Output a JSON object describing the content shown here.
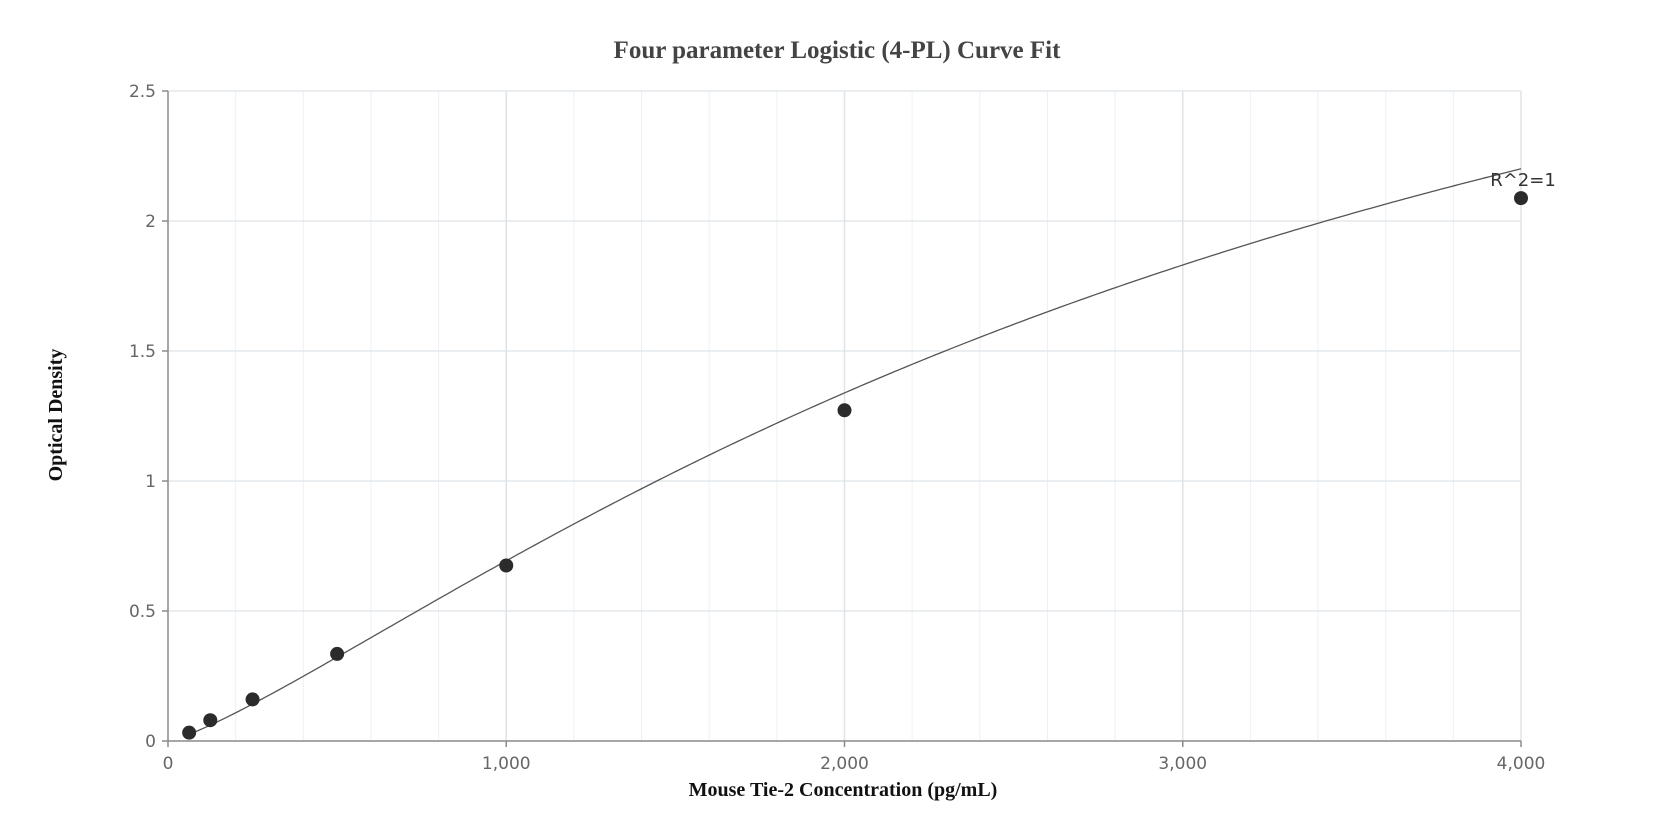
{
  "chart_data": {
    "type": "scatter",
    "title": "Four parameter Logistic (4-PL) Curve Fit",
    "xlabel": "Mouse Tie-2 Concentration (pg/mL)",
    "ylabel": "Optical Density",
    "xlim": [
      0,
      4000
    ],
    "ylim": [
      0,
      2.5
    ],
    "x_ticks": [
      0,
      1000,
      2000,
      3000,
      4000
    ],
    "x_tick_labels": [
      "0",
      "1,000",
      "2,000",
      "3,000",
      "4,000"
    ],
    "x_minor_step": 200,
    "y_ticks": [
      0,
      0.5,
      1,
      1.5,
      2,
      2.5
    ],
    "y_tick_labels": [
      "0",
      "0.5",
      "1",
      "1.5",
      "2",
      "2.5"
    ],
    "grid": true,
    "series": [
      {
        "points": [
          {
            "x": 62.5,
            "y": 0.032
          },
          {
            "x": 125,
            "y": 0.08
          },
          {
            "x": 250,
            "y": 0.16
          },
          {
            "x": 500,
            "y": 0.335
          },
          {
            "x": 1000,
            "y": 0.675
          },
          {
            "x": 2000,
            "y": 1.272
          },
          {
            "x": 4000,
            "y": 2.088
          }
        ],
        "marker_color": "#2b2b2b"
      }
    ],
    "fit_curve": {
      "type": "4PL",
      "A": 0.0,
      "B": 1.25,
      "C": 3600,
      "D": 4.13,
      "line_color": "#555555"
    },
    "annotations": [
      {
        "text": "R^2=1",
        "x": 4000,
        "y": 2.088
      }
    ],
    "colors": {
      "grid_major": "#dfe3e8",
      "grid_minor": "#eef0f3",
      "axis": "#8a8a8a"
    }
  }
}
